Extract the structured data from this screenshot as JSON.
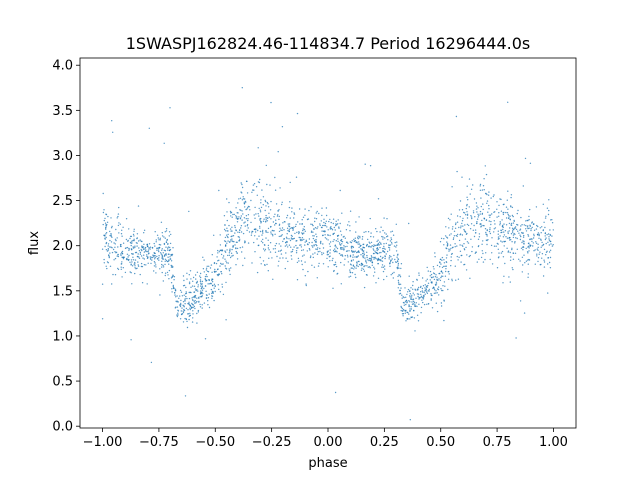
{
  "chart_data": {
    "type": "scatter",
    "title": "1SWASPJ162824.46-114834.7 Period 16296444.0s",
    "xlabel": "phase",
    "ylabel": "flux",
    "xlim": [
      -1.1,
      1.1
    ],
    "ylim": [
      -0.02,
      4.08
    ],
    "xticks": [
      -1.0,
      -0.75,
      -0.5,
      -0.25,
      0.0,
      0.25,
      0.5,
      0.75,
      1.0
    ],
    "xtick_labels": [
      "−1.00",
      "−0.75",
      "−0.50",
      "−0.25",
      "0.00",
      "0.25",
      "0.50",
      "0.75",
      "1.00"
    ],
    "yticks": [
      0.0,
      0.5,
      1.0,
      1.5,
      2.0,
      2.5,
      3.0,
      3.5,
      4.0
    ],
    "ytick_labels": [
      "0.0",
      "0.5",
      "1.0",
      "1.5",
      "2.0",
      "2.5",
      "3.0",
      "3.5",
      "4.0"
    ],
    "marker_color": "#1f77b4",
    "grid": false,
    "series_profile": {
      "phase": [
        -1.0,
        -0.9,
        -0.8,
        -0.7,
        -0.67,
        -0.6,
        -0.5,
        -0.45,
        -0.35,
        -0.25,
        -0.15,
        -0.05,
        0.0,
        0.1,
        0.2,
        0.3,
        0.33,
        0.4,
        0.5,
        0.55,
        0.65,
        0.75,
        0.85,
        0.95,
        1.0
      ],
      "median_flux": [
        2.1,
        1.95,
        1.9,
        1.95,
        1.3,
        1.4,
        1.65,
        2.0,
        2.35,
        2.2,
        2.1,
        2.05,
        2.1,
        1.95,
        1.9,
        1.95,
        1.3,
        1.4,
        1.65,
        2.0,
        2.35,
        2.2,
        2.1,
        2.05,
        2.1
      ],
      "spread": [
        0.3,
        0.25,
        0.2,
        0.25,
        0.15,
        0.2,
        0.3,
        0.35,
        0.4,
        0.35,
        0.3,
        0.25,
        0.3,
        0.25,
        0.2,
        0.25,
        0.15,
        0.2,
        0.3,
        0.35,
        0.4,
        0.35,
        0.3,
        0.25,
        0.3
      ]
    }
  }
}
